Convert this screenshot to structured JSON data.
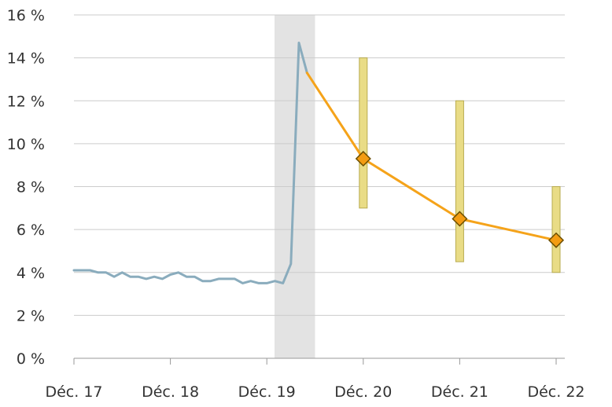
{
  "chart_data": {
    "type": "line",
    "title": "",
    "xlabel": "",
    "ylabel": "",
    "x_ticks": [
      "Déc. 17",
      "Déc. 18",
      "Déc. 19",
      "Déc. 20",
      "Déc. 21",
      "Déc. 22"
    ],
    "y_ticks": [
      "0 %",
      "2 %",
      "4 %",
      "6 %",
      "8 %",
      "10 %",
      "12 %",
      "14 %",
      "16 %"
    ],
    "ylim": [
      0,
      16
    ],
    "grid": true,
    "legend": "none",
    "shaded_period": {
      "x_start": 2.08,
      "x_end": 2.5
    },
    "series": [
      {
        "x": [
          0,
          0.083,
          0.167,
          0.25,
          0.333,
          0.417,
          0.5,
          0.583,
          0.667,
          0.75,
          0.833,
          0.917,
          1.0,
          1.083,
          1.167,
          1.25,
          1.333,
          1.417,
          1.5,
          1.583,
          1.667,
          1.75,
          1.833,
          1.917,
          2.0,
          2.083,
          2.167,
          2.25,
          2.333,
          2.417
        ],
        "y": [
          4.1,
          4.1,
          4.1,
          4.0,
          4.0,
          3.8,
          4.0,
          3.8,
          3.8,
          3.7,
          3.8,
          3.7,
          3.9,
          4.0,
          3.8,
          3.8,
          3.6,
          3.6,
          3.7,
          3.7,
          3.7,
          3.5,
          3.6,
          3.5,
          3.5,
          3.6,
          3.5,
          4.4,
          14.7,
          13.3
        ],
        "color": "#8aacbd"
      },
      {
        "x": [
          2.417,
          3,
          4,
          5
        ],
        "y": [
          13.3,
          9.3,
          6.5,
          5.5
        ],
        "markers": [
          false,
          true,
          true,
          true
        ],
        "color": "#f5a31a",
        "marker_color": "#f39c12"
      }
    ],
    "ranges": [
      {
        "x": 3,
        "low": 7.0,
        "high": 14.0
      },
      {
        "x": 4,
        "low": 4.5,
        "high": 12.0
      },
      {
        "x": 5,
        "low": 4.0,
        "high": 8.0
      }
    ],
    "colors": {
      "grid": "#cccccc",
      "axis": "#999999",
      "shade": "#e3e3e3",
      "range_fill": "#e9dc86",
      "range_stroke": "#b8ab4f",
      "marker_stroke": "#6b4e00"
    }
  }
}
